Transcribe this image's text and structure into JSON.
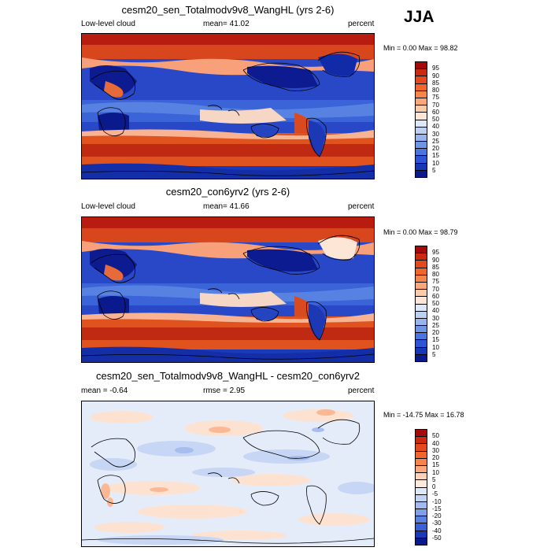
{
  "season": "JJA",
  "panels": [
    {
      "title": "cesm20_sen_Totalmodv9v8_WangHL (yrs 2-6)",
      "left_label": "Low-level cloud",
      "center_label": "mean=  41.02",
      "right_label": "percent",
      "minmax": "Min =   0.00 Max =  98.82",
      "colorbar_ticks": [
        "95",
        "90",
        "85",
        "80",
        "75",
        "70",
        "60",
        "50",
        "40",
        "30",
        "25",
        "20",
        "15",
        "10",
        "5"
      ],
      "colorbar_colors": [
        "#a50a0a",
        "#cc2a10",
        "#e54a1e",
        "#f0662c",
        "#f7854a",
        "#fba77a",
        "#fdcaa8",
        "#fde6d6",
        "#dce8f8",
        "#bcd0f2",
        "#98b4ec",
        "#7095e6",
        "#4c76df",
        "#2f55d6",
        "#1836b8",
        "#0a1a8c"
      ]
    },
    {
      "title": "cesm20_con6yrv2 (yrs 2-6)",
      "left_label": "Low-level cloud",
      "center_label": "mean=  41.66",
      "right_label": "percent",
      "minmax": "Min =   0.00 Max =  98.79",
      "colorbar_ticks": [
        "95",
        "90",
        "85",
        "80",
        "75",
        "70",
        "60",
        "50",
        "40",
        "30",
        "25",
        "20",
        "15",
        "10",
        "5"
      ],
      "colorbar_colors": [
        "#a50a0a",
        "#cc2a10",
        "#e54a1e",
        "#f0662c",
        "#f7854a",
        "#fba77a",
        "#fdcaa8",
        "#fde6d6",
        "#dce8f8",
        "#bcd0f2",
        "#98b4ec",
        "#7095e6",
        "#4c76df",
        "#2f55d6",
        "#1836b8",
        "#0a1a8c"
      ]
    },
    {
      "title": "cesm20_sen_Totalmodv9v8_WangHL - cesm20_con6yrv2",
      "left_label": "mean =  -0.64",
      "center_label": "rmse =   2.95",
      "right_label": "percent",
      "minmax": "Min = -14.75 Max =  16.78",
      "colorbar_ticks": [
        "50",
        "40",
        "30",
        "20",
        "15",
        "10",
        "5",
        "0",
        "-5",
        "-10",
        "-15",
        "-20",
        "-30",
        "-40",
        "-50"
      ],
      "colorbar_colors": [
        "#a50a0a",
        "#cc2a10",
        "#e54a1e",
        "#f0662c",
        "#f7854a",
        "#fba77a",
        "#fdd2b8",
        "#fdeadc",
        "#dde8f8",
        "#c2d4f3",
        "#a2bbee",
        "#7f9fe8",
        "#5a80e0",
        "#3a5fd6",
        "#1c3ab8",
        "#0a1a8c"
      ]
    }
  ]
}
